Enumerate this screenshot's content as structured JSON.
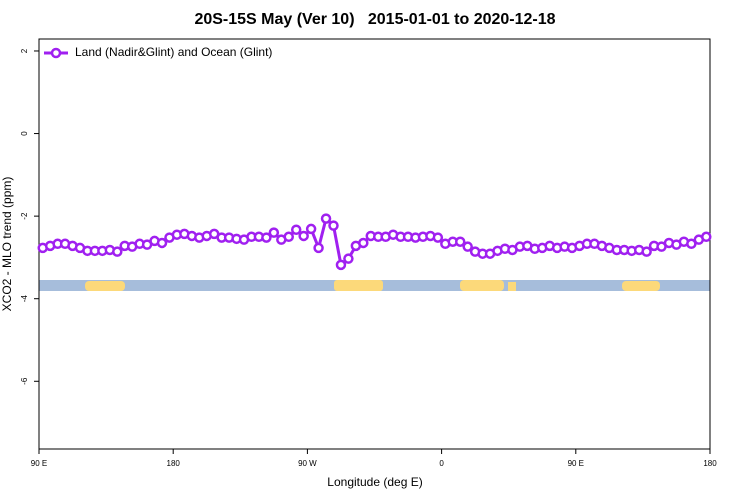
{
  "chart_data": {
    "type": "line",
    "title": "20S-15S May (Ver 10)   2015-01-01 to 2020-12-18",
    "xlabel": "Longitude (deg E)",
    "ylabel": "XCO2 - MLO trend (ppm)",
    "xlim": [
      90,
      540
    ],
    "ylim": [
      -7.64,
      2.29
    ],
    "xticks": [
      {
        "value": 90,
        "label": "90 E"
      },
      {
        "value": 180,
        "label": "180"
      },
      {
        "value": 270,
        "label": "90 W"
      },
      {
        "value": 360,
        "label": "0"
      },
      {
        "value": 450,
        "label": "90 E"
      },
      {
        "value": 540,
        "label": "180"
      }
    ],
    "yticks": [
      2,
      0,
      -2,
      -4,
      -6
    ],
    "legend": "top-left",
    "x": [
      92.5,
      97.5,
      102.5,
      107.5,
      112.5,
      117.5,
      122.5,
      127.5,
      132.5,
      137.5,
      142.5,
      147.5,
      152.5,
      157.5,
      162.5,
      167.5,
      172.5,
      177.5,
      182.5,
      187.5,
      192.5,
      197.5,
      202.5,
      207.5,
      212.5,
      217.5,
      222.5,
      227.5,
      232.5,
      237.5,
      242.5,
      247.5,
      252.5,
      257.5,
      262.5,
      267.5,
      272.5,
      277.5,
      282.5,
      287.5,
      292.5,
      297.5,
      302.5,
      307.5,
      312.5,
      317.5,
      322.5,
      327.5,
      332.5,
      337.5,
      342.5,
      347.5,
      352.5,
      357.5,
      362.5,
      367.5,
      372.5,
      377.5,
      382.5,
      387.5,
      392.5,
      397.5,
      402.5,
      407.5,
      412.5,
      417.5,
      422.5,
      427.5,
      432.5,
      437.5,
      442.5,
      447.5,
      452.5,
      457.5,
      462.5,
      467.5,
      472.5,
      477.5,
      482.5,
      487.5,
      492.5,
      497.5,
      502.5,
      507.5,
      512.5,
      517.5,
      522.5,
      527.5,
      532.5,
      537.5
    ],
    "series": [
      {
        "name": "Land (Nadir&Glint) and Ocean (Glint)",
        "color": "#a020f0",
        "values": [
          -2.77,
          -2.72,
          -2.67,
          -2.67,
          -2.72,
          -2.77,
          -2.84,
          -2.84,
          -2.84,
          -2.82,
          -2.86,
          -2.72,
          -2.74,
          -2.67,
          -2.69,
          -2.6,
          -2.65,
          -2.52,
          -2.45,
          -2.43,
          -2.48,
          -2.52,
          -2.48,
          -2.43,
          -2.52,
          -2.52,
          -2.55,
          -2.57,
          -2.5,
          -2.5,
          -2.52,
          -2.4,
          -2.57,
          -2.5,
          -2.33,
          -2.48,
          -2.31,
          -2.77,
          -2.06,
          -2.23,
          -3.18,
          -3.03,
          -2.72,
          -2.65,
          -2.48,
          -2.5,
          -2.5,
          -2.45,
          -2.5,
          -2.5,
          -2.52,
          -2.5,
          -2.48,
          -2.52,
          -2.67,
          -2.62,
          -2.62,
          -2.74,
          -2.86,
          -2.91,
          -2.91,
          -2.84,
          -2.79,
          -2.82,
          -2.74,
          -2.72,
          -2.79,
          -2.77,
          -2.72,
          -2.77,
          -2.74,
          -2.77,
          -2.72,
          -2.67,
          -2.67,
          -2.72,
          -2.77,
          -2.82,
          -2.82,
          -2.84,
          -2.82,
          -2.86,
          -2.72,
          -2.74,
          -2.65,
          -2.69,
          -2.62,
          -2.67,
          -2.57,
          -2.5
        ]
      }
    ]
  }
}
